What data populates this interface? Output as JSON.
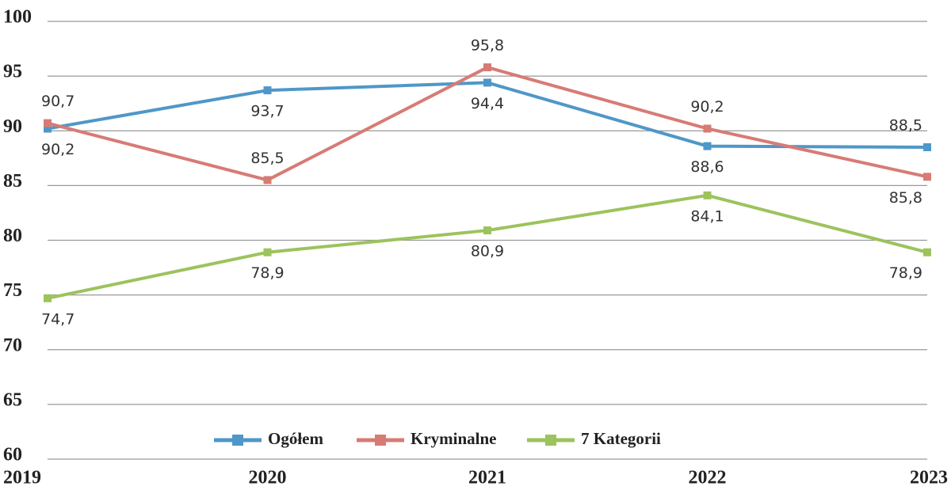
{
  "chart_data": {
    "type": "line",
    "categories": [
      "2019",
      "2020",
      "2021",
      "2022",
      "2023"
    ],
    "series": [
      {
        "name": "Ogółem",
        "color": "#4f97c8",
        "values": [
          90.2,
          93.7,
          94.4,
          88.6,
          88.5
        ],
        "value_labels": [
          "90,2",
          "93,7",
          "94,4",
          "88,6",
          "88,5"
        ]
      },
      {
        "name": "Kryminalne",
        "color": "#d77b75",
        "values": [
          90.7,
          85.5,
          95.8,
          90.2,
          85.8
        ],
        "value_labels": [
          "90,7",
          "85,5",
          "95,8",
          "90,2",
          "85,8"
        ]
      },
      {
        "name": "7 Kategorii",
        "color": "#9cc35c",
        "values": [
          74.7,
          78.9,
          80.9,
          84.1,
          78.9
        ],
        "value_labels": [
          "74,7",
          "78,9",
          "80,9",
          "84,1",
          "78,9"
        ]
      }
    ],
    "ylim": [
      60,
      100
    ],
    "yticks": [
      60,
      65,
      70,
      75,
      80,
      85,
      90,
      95,
      100
    ],
    "grid": true,
    "legend": "bottom"
  }
}
